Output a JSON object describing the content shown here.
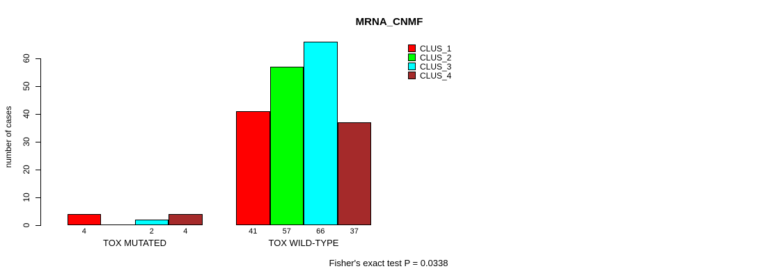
{
  "title": "MRNA_CNMF",
  "y_axis": {
    "label": "number of cases"
  },
  "footer": "Fisher's exact test P = 0.0338",
  "chart_data": {
    "type": "bar",
    "title": "MRNA_CNMF",
    "xlabel": "",
    "ylabel": "number of cases",
    "categories": [
      "TOX MUTATED",
      "TOX WILD-TYPE"
    ],
    "series": [
      {
        "name": "CLUS_1",
        "color": "#FF0000",
        "values": [
          4,
          41
        ]
      },
      {
        "name": "CLUS_2",
        "color": "#00FF00",
        "values": [
          0,
          57
        ]
      },
      {
        "name": "CLUS_3",
        "color": "#00FFFF",
        "values": [
          2,
          66
        ]
      },
      {
        "name": "CLUS_4",
        "color": "#A52A2A",
        "values": [
          4,
          37
        ]
      }
    ],
    "bar_labels": [
      [
        "4",
        "",
        "2",
        "4"
      ],
      [
        "41",
        "57",
        "66",
        "37"
      ]
    ],
    "yticks": [
      0,
      10,
      20,
      30,
      40,
      50,
      60
    ],
    "ylim": [
      0,
      66
    ],
    "legend_entries": [
      "CLUS_1",
      "CLUS_2",
      "CLUS_3",
      "CLUS_4"
    ],
    "legend_position": "top-right",
    "grid": false,
    "annotation": "Fisher's exact test P = 0.0338"
  }
}
